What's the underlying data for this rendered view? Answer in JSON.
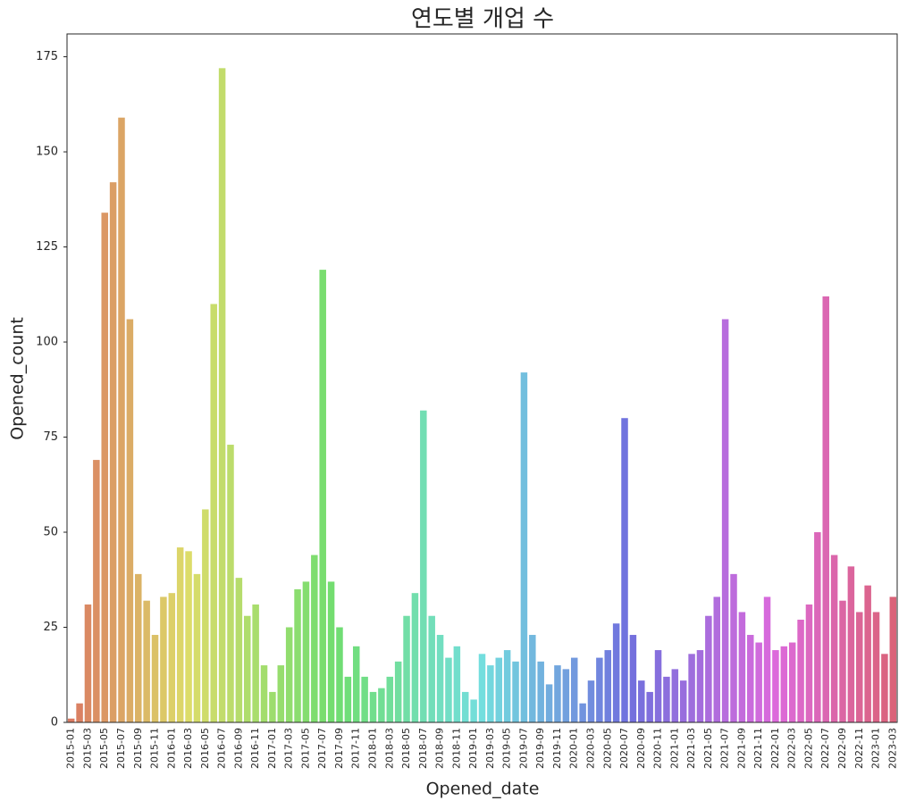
{
  "chart_data": {
    "type": "bar",
    "title": "연도별 개업 수",
    "x_label": "Opened_date",
    "y_label": "Opened_count",
    "categories": [
      "2015-01",
      null,
      "2015-03",
      null,
      "2015-05",
      null,
      "2015-07",
      null,
      "2015-09",
      null,
      "2015-11",
      null,
      "2016-01",
      null,
      "2016-03",
      null,
      "2016-05",
      null,
      "2016-07",
      null,
      "2016-09",
      null,
      "2016-11",
      null,
      "2017-01",
      null,
      "2017-03",
      null,
      "2017-05",
      null,
      "2017-07",
      null,
      "2017-09",
      null,
      "2017-11",
      null,
      "2018-01",
      null,
      "2018-03",
      null,
      "2018-05",
      null,
      "2018-07",
      null,
      "2018-09",
      null,
      "2018-11",
      null,
      "2019-01",
      null,
      "2019-03",
      null,
      "2019-05",
      null,
      "2019-07",
      null,
      "2019-09",
      null,
      "2019-11",
      null,
      "2020-01",
      null,
      "2020-03",
      null,
      "2020-05",
      null,
      "2020-07",
      null,
      "2020-09",
      null,
      "2020-11",
      null,
      "2021-01",
      null,
      "2021-03",
      null,
      "2021-05",
      null,
      "2021-07",
      null,
      "2021-09",
      null,
      "2021-11",
      null,
      "2022-01",
      null,
      "2022-03",
      null,
      "2022-05",
      null,
      "2022-07",
      null,
      "2022-09",
      null,
      "2022-11",
      null,
      "2023-01",
      null,
      "2023-03"
    ],
    "values": [
      1,
      5,
      31,
      69,
      134,
      142,
      159,
      106,
      39,
      32,
      23,
      33,
      34,
      46,
      45,
      39,
      56,
      110,
      172,
      73,
      38,
      28,
      31,
      15,
      8,
      15,
      25,
      35,
      37,
      44,
      119,
      37,
      25,
      12,
      20,
      12,
      8,
      9,
      12,
      16,
      28,
      34,
      82,
      28,
      23,
      17,
      20,
      8,
      6,
      18,
      15,
      17,
      19,
      16,
      92,
      23,
      16,
      10,
      15,
      14,
      17,
      5,
      11,
      17,
      19,
      26,
      80,
      23,
      11,
      8,
      19,
      12,
      14,
      11,
      18,
      19,
      28,
      33,
      106,
      39,
      29,
      23,
      21,
      33,
      19,
      20,
      21,
      27,
      31,
      50,
      112,
      44,
      32,
      41,
      29,
      36,
      29,
      18,
      33
    ],
    "palette": "husl",
    "ylim": [
      0,
      181
    ],
    "yticks": [
      0,
      25,
      50,
      75,
      100,
      125,
      150,
      175
    ],
    "grid": false
  }
}
